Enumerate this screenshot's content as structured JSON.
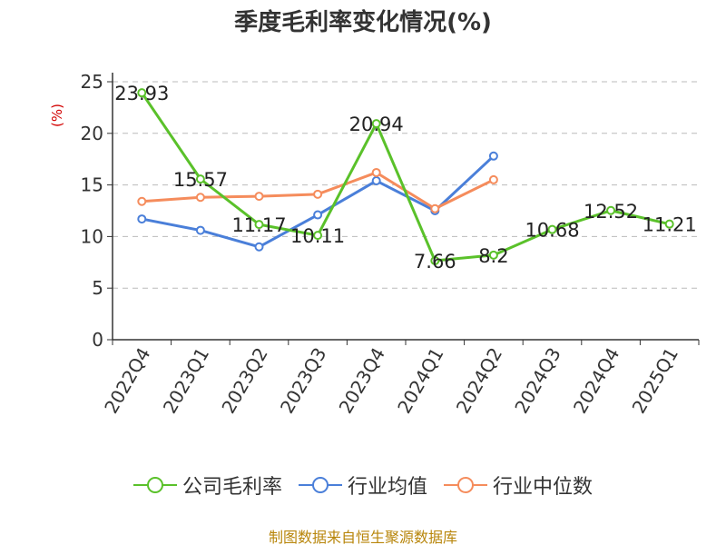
{
  "title": "季度毛利率变化情况(%)",
  "source": "制图数据来自恒生聚源数据库",
  "colors": {
    "company": "#5ac12a",
    "industry_avg": "#4a7fd9",
    "industry_median": "#f58c5c",
    "grid": "#bbbbbb",
    "axis": "#333333",
    "ylabel": "#d20000",
    "source": "#b8860b"
  },
  "chart_data": {
    "type": "line",
    "title": "季度毛利率变化情况(%)",
    "ylabel": "(%)",
    "xlabel": "",
    "ylim": [
      0,
      25
    ],
    "yticks": [
      0,
      5,
      10,
      15,
      20,
      25
    ],
    "grid": true,
    "legend_position": "bottom",
    "categories": [
      "2022Q4",
      "2023Q1",
      "2023Q2",
      "2023Q3",
      "2023Q4",
      "2024Q1",
      "2024Q2",
      "2024Q3",
      "2024Q4",
      "2025Q1"
    ],
    "series": [
      {
        "name": "公司毛利率",
        "key": "company",
        "values": [
          23.93,
          15.57,
          11.17,
          10.11,
          20.94,
          7.66,
          8.2,
          10.68,
          12.52,
          11.21
        ],
        "labels": [
          "23.93",
          "15.57",
          "11.17",
          "10.11",
          "20.94",
          "7.66",
          "8.2",
          "10.68",
          "12.52",
          "11.21"
        ]
      },
      {
        "name": "行业均值",
        "key": "industry_avg",
        "values": [
          11.7,
          10.6,
          9.0,
          12.1,
          15.4,
          12.5,
          17.8,
          null,
          null,
          null
        ]
      },
      {
        "name": "行业中位数",
        "key": "industry_median",
        "values": [
          13.4,
          13.8,
          13.9,
          14.1,
          16.2,
          12.7,
          15.5,
          null,
          null,
          null
        ]
      }
    ]
  }
}
